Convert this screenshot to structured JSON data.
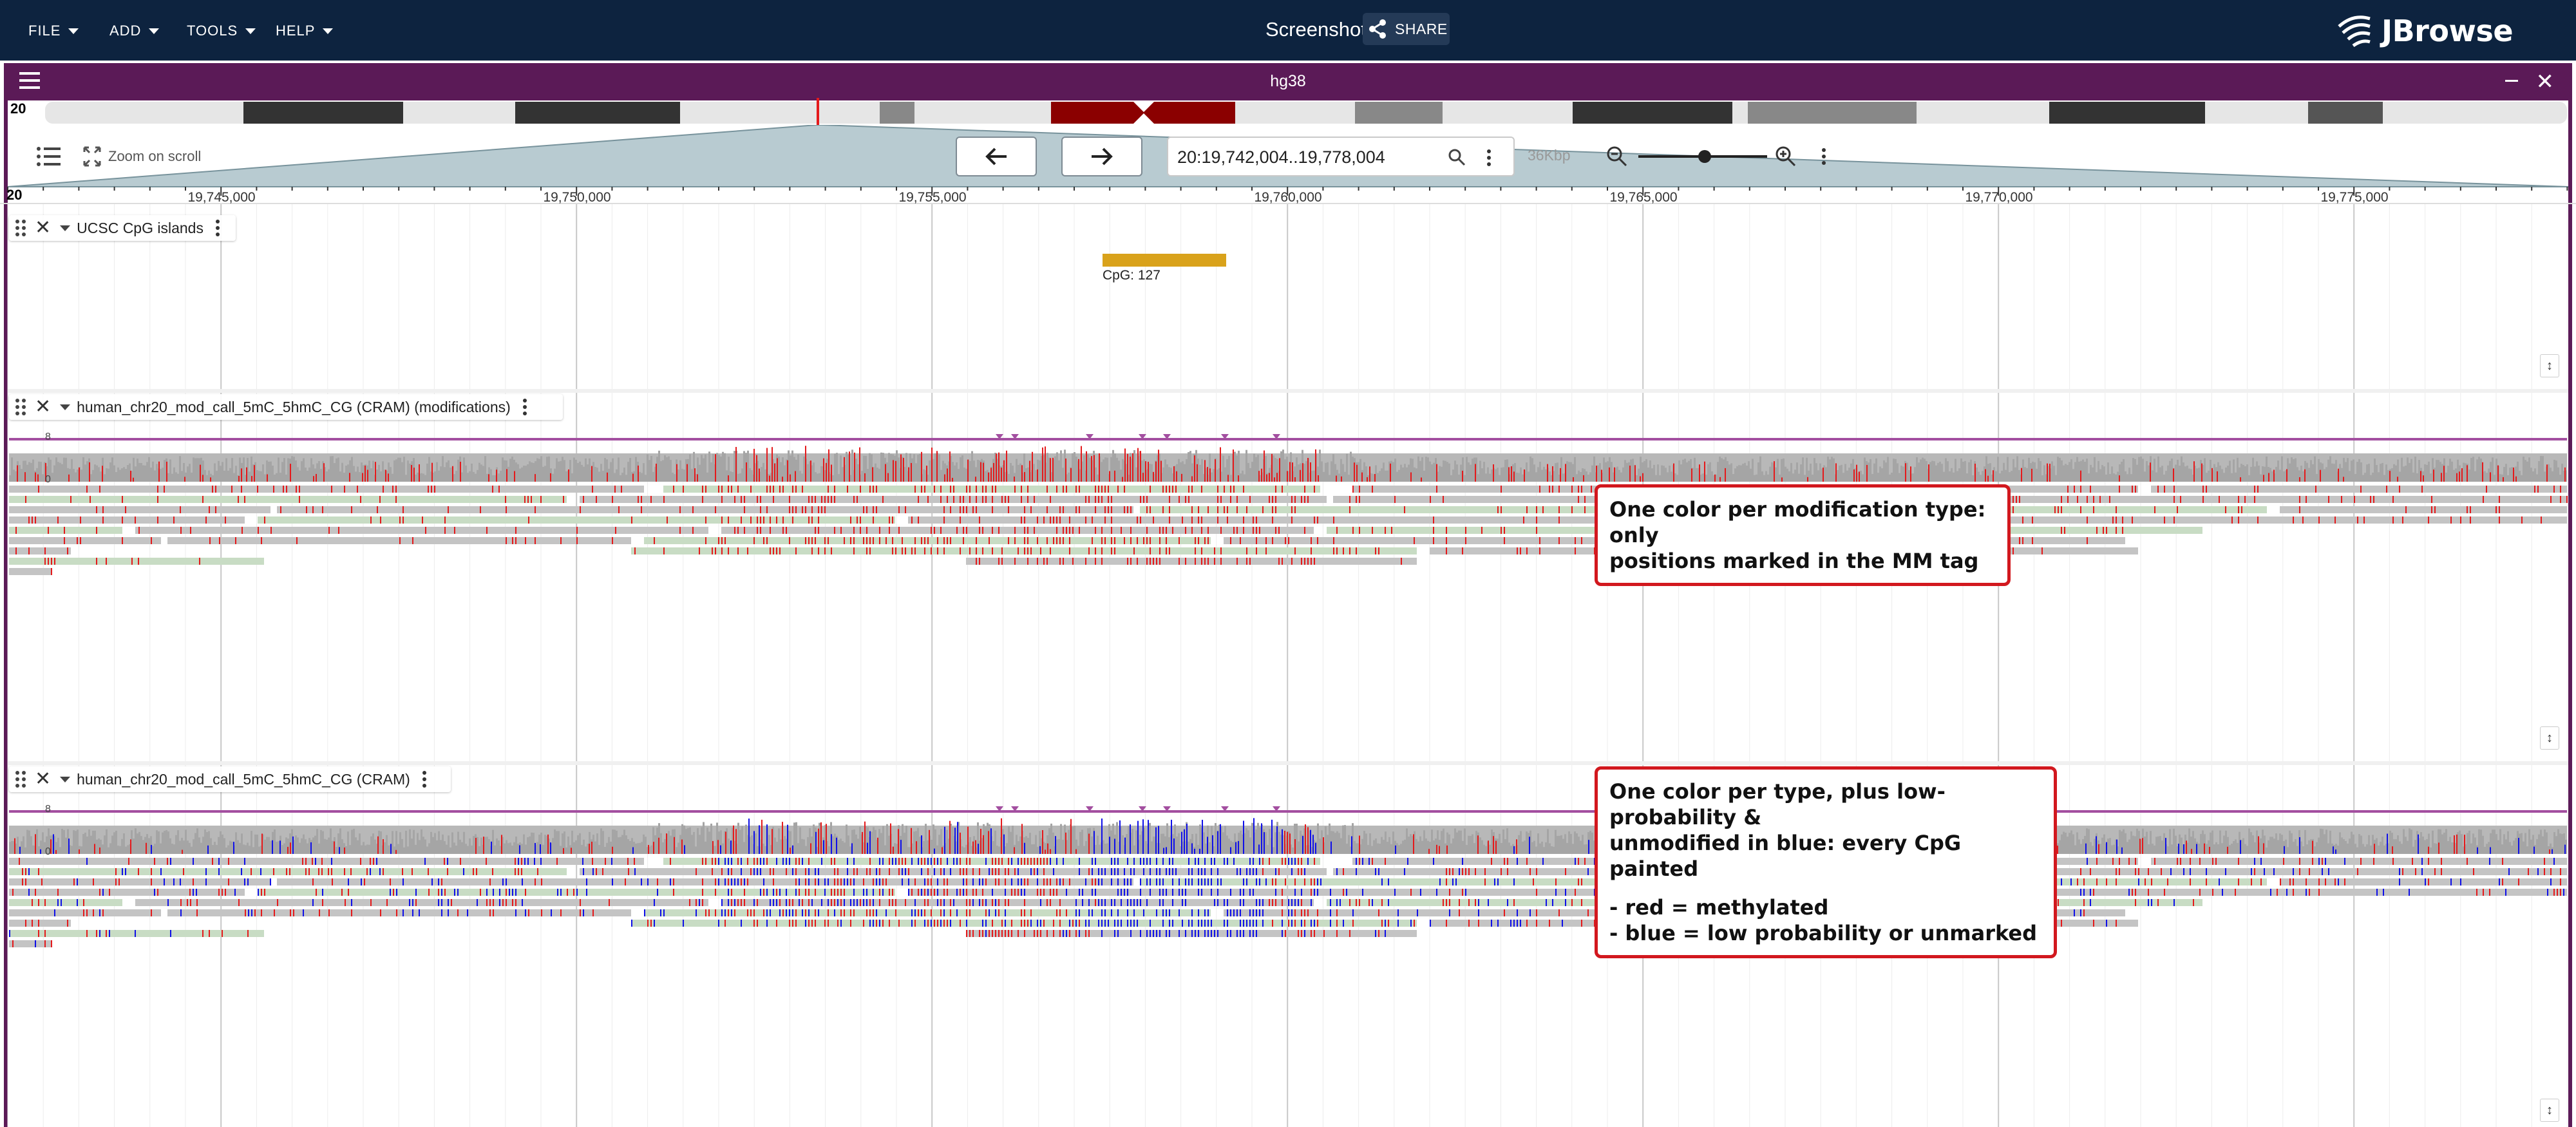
{
  "app": {
    "menus": [
      {
        "label": "FILE"
      },
      {
        "label": "ADD"
      },
      {
        "label": "TOOLS"
      },
      {
        "label": "HELP"
      }
    ],
    "session_name": "Screenshot",
    "share_label": "SHARE",
    "logo_text": "JBrowse"
  },
  "view": {
    "assembly": "hg38",
    "chromosome": "20",
    "zoom_on_scroll_label": "Zoom on scroll",
    "location": "20:19,742,004..19,778,004",
    "bp_width": "36Kbp",
    "ruler_chr": "20",
    "ruler_ticks": [
      "19,745,000",
      "19,750,000",
      "19,755,000",
      "19,760,000",
      "19,765,000",
      "19,770,000",
      "19,775,000"
    ]
  },
  "tracks": [
    {
      "name": "UCSC CpG islands",
      "feature_label": "CpG: 127"
    },
    {
      "name": "human_chr20_mod_call_5mC_5hmC_CG (CRAM) (modifications)",
      "coverage_max": "8",
      "coverage_min": "0"
    },
    {
      "name": "human_chr20_mod_call_5mC_5hmC_CG (CRAM)",
      "coverage_max": "8",
      "coverage_min": "0"
    }
  ],
  "callouts": [
    {
      "line1": "One color per modification type: only",
      "line2": "positions marked in the MM tag"
    },
    {
      "line1": "One color per type, plus low-probability &",
      "line2": "unmodified in blue: every CpG painted",
      "line3": "- red = methylated",
      "line4": "- blue = low probability or unmarked"
    }
  ],
  "colors": {
    "appbar": "#0d233f",
    "view_header": "#5b1a57",
    "methylated": "#e41a1c",
    "low_probability": "#1010e8",
    "cpg_feature": "#d9a21b"
  }
}
